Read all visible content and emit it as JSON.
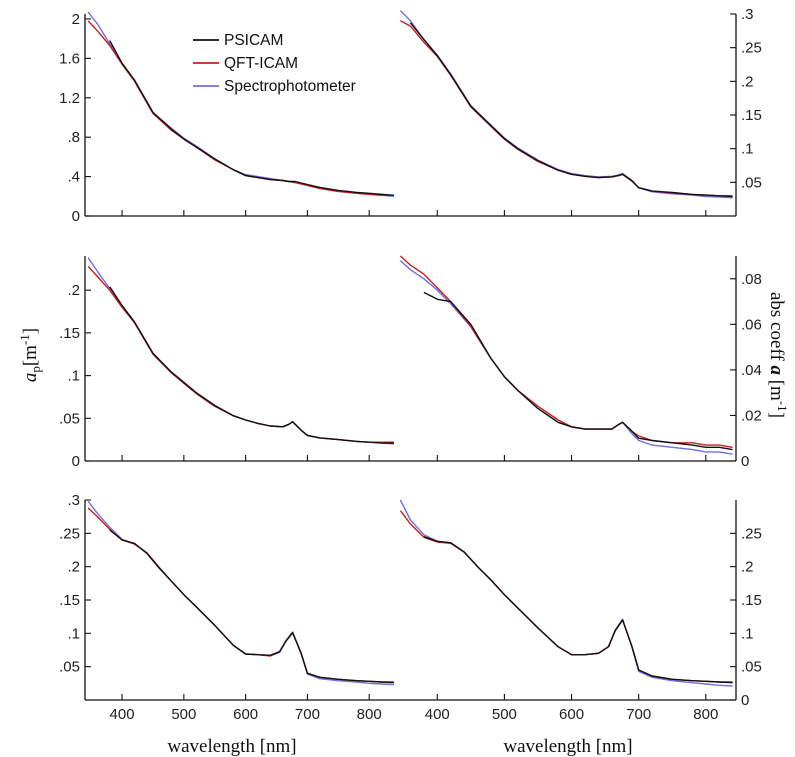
{
  "chart_data": {
    "type": "line",
    "grid": false,
    "legend": {
      "location": "top-left panel, upper area",
      "entries": [
        {
          "name": "PSICAM",
          "color": "#111111"
        },
        {
          "name": "QFT-ICAM",
          "color": "#c81e1e"
        },
        {
          "name": "Spectrophotometer",
          "color": "#6f6fe8"
        }
      ]
    },
    "xlabel": "wavelength [nm]",
    "ylabel_left_symbol": "a",
    "ylabel_left_subscript": "p",
    "ylabel_left_unit": "[m",
    "ylabel_left_exp": "-1",
    "ylabel_left_close": "]",
    "ylabel_right_text": "abs coeff ",
    "ylabel_right_symbol": "a",
    "ylabel_right_unit": " [m",
    "ylabel_right_exp": "-1",
    "ylabel_right_close": "]",
    "xlim": [
      340,
      845
    ],
    "xticks": [
      400,
      500,
      600,
      700,
      800
    ],
    "xticklabels": [
      "400",
      "500",
      "600",
      "700",
      "800"
    ],
    "panels": [
      {
        "id": "top-left",
        "row": 0,
        "col": 0,
        "yaxis": "left",
        "ylim": [
          0,
          2.05
        ],
        "yticks": [
          0,
          0.4,
          0.8,
          1.2,
          1.6,
          2.0
        ],
        "yticklabels": [
          "0",
          ".4",
          ".8",
          "1.2",
          "1.6",
          "2"
        ],
        "x": [
          345,
          360,
          380,
          400,
          420,
          450,
          480,
          500,
          520,
          550,
          580,
          600,
          620,
          640,
          660,
          670,
          680,
          700,
          720,
          750,
          780,
          800,
          820,
          840
        ],
        "series": [
          {
            "name": "PSICAM",
            "start": 370,
            "values": [
              2.0,
              1.93,
              1.78,
              1.55,
              1.38,
              1.05,
              0.88,
              0.78,
              0.7,
              0.58,
              0.47,
              0.41,
              0.39,
              0.37,
              0.36,
              0.35,
              0.35,
              0.32,
              0.29,
              0.26,
              0.24,
              0.23,
              0.22,
              0.21
            ]
          },
          {
            "name": "QFT-ICAM",
            "values": [
              1.98,
              1.88,
              1.73,
              1.54,
              1.37,
              1.04,
              0.87,
              0.78,
              0.7,
              0.57,
              0.47,
              0.41,
              0.39,
              0.37,
              0.36,
              0.35,
              0.34,
              0.31,
              0.28,
              0.25,
              0.23,
              0.22,
              0.21,
              0.21
            ]
          },
          {
            "name": "Spectrophotometer",
            "values": [
              2.07,
              1.95,
              1.75,
              1.55,
              1.38,
              1.05,
              0.89,
              0.79,
              0.71,
              0.58,
              0.47,
              0.42,
              0.4,
              0.38,
              0.36,
              0.35,
              0.34,
              0.31,
              0.28,
              0.25,
              0.23,
              0.22,
              0.21,
              0.2
            ]
          }
        ]
      },
      {
        "id": "top-right",
        "row": 0,
        "col": 1,
        "yaxis": "right",
        "ylim": [
          0,
          0.3
        ],
        "yticks": [
          0.05,
          0.1,
          0.15,
          0.2,
          0.25,
          0.3
        ],
        "yticklabels": [
          ".05",
          ".1",
          ".15",
          ".2",
          ".25",
          ".3"
        ],
        "x": [
          345,
          360,
          380,
          400,
          420,
          450,
          480,
          500,
          520,
          550,
          580,
          600,
          620,
          640,
          660,
          670,
          676,
          690,
          700,
          720,
          750,
          780,
          800,
          820,
          840
        ],
        "series": [
          {
            "name": "PSICAM",
            "start": 360,
            "values": [
              0.3,
              0.287,
              0.262,
              0.238,
              0.21,
              0.163,
              0.134,
              0.115,
              0.1,
              0.082,
              0.068,
              0.062,
              0.059,
              0.057,
              0.058,
              0.06,
              0.062,
              0.052,
              0.042,
              0.037,
              0.035,
              0.032,
              0.031,
              0.03,
              0.029
            ]
          },
          {
            "name": "QFT-ICAM",
            "values": [
              0.29,
              0.282,
              0.258,
              0.237,
              0.209,
              0.162,
              0.133,
              0.114,
              0.099,
              0.081,
              0.068,
              0.062,
              0.059,
              0.057,
              0.058,
              0.06,
              0.062,
              0.052,
              0.042,
              0.037,
              0.034,
              0.032,
              0.031,
              0.03,
              0.03
            ]
          },
          {
            "name": "Spectrophotometer",
            "values": [
              0.305,
              0.29,
              0.262,
              0.239,
              0.211,
              0.164,
              0.135,
              0.116,
              0.101,
              0.083,
              0.069,
              0.063,
              0.06,
              0.058,
              0.059,
              0.061,
              0.063,
              0.053,
              0.042,
              0.036,
              0.033,
              0.031,
              0.029,
              0.028,
              0.027
            ]
          }
        ]
      },
      {
        "id": "middle-left",
        "row": 1,
        "col": 0,
        "yaxis": "left",
        "ylim": [
          0,
          0.24
        ],
        "yticks": [
          0,
          0.05,
          0.1,
          0.15,
          0.2
        ],
        "yticklabels": [
          "0",
          ".05",
          ".1",
          ".15",
          ".2"
        ],
        "x": [
          345,
          360,
          380,
          400,
          420,
          450,
          480,
          500,
          520,
          550,
          580,
          600,
          620,
          640,
          660,
          670,
          676,
          690,
          700,
          720,
          750,
          780,
          800,
          820,
          840
        ],
        "series": [
          {
            "name": "PSICAM",
            "start": 370,
            "values": [
              0.225,
              0.214,
              0.204,
              0.182,
              0.163,
              0.126,
              0.104,
              0.092,
              0.08,
              0.065,
              0.053,
              0.048,
              0.044,
              0.041,
              0.04,
              0.043,
              0.046,
              0.036,
              0.03,
              0.027,
              0.025,
              0.023,
              0.022,
              0.021,
              0.021
            ]
          },
          {
            "name": "QFT-ICAM",
            "values": [
              0.228,
              0.216,
              0.2,
              0.18,
              0.162,
              0.125,
              0.103,
              0.091,
              0.079,
              0.064,
              0.053,
              0.048,
              0.044,
              0.041,
              0.04,
              0.043,
              0.046,
              0.036,
              0.03,
              0.027,
              0.025,
              0.023,
              0.022,
              0.022,
              0.022
            ]
          },
          {
            "name": "Spectrophotometer",
            "values": [
              0.238,
              0.222,
              0.202,
              0.181,
              0.163,
              0.126,
              0.104,
              0.092,
              0.08,
              0.065,
              0.053,
              0.048,
              0.044,
              0.041,
              0.04,
              0.043,
              0.046,
              0.036,
              0.03,
              0.027,
              0.025,
              0.023,
              0.022,
              0.021,
              0.02
            ]
          }
        ]
      },
      {
        "id": "middle-right",
        "row": 1,
        "col": 1,
        "yaxis": "right",
        "ylim": [
          0,
          0.09
        ],
        "yticks": [
          0,
          0.02,
          0.04,
          0.06,
          0.08
        ],
        "yticklabels": [
          "0",
          ".02",
          ".04",
          ".06",
          ".08"
        ],
        "x": [
          345,
          360,
          380,
          400,
          420,
          450,
          480,
          500,
          520,
          550,
          580,
          600,
          620,
          640,
          660,
          670,
          676,
          690,
          700,
          720,
          750,
          780,
          800,
          820,
          840
        ],
        "series": [
          {
            "name": "PSICAM",
            "start": 372,
            "values": [
              0.09,
              0.085,
              0.074,
              0.071,
              0.07,
              0.06,
              0.045,
              0.037,
              0.031,
              0.023,
              0.017,
              0.015,
              0.014,
              0.014,
              0.014,
              0.016,
              0.017,
              0.013,
              0.01,
              0.009,
              0.008,
              0.007,
              0.006,
              0.006,
              0.005
            ]
          },
          {
            "name": "QFT-ICAM",
            "values": [
              0.09,
              0.086,
              0.082,
              0.076,
              0.07,
              0.059,
              0.045,
              0.037,
              0.031,
              0.024,
              0.018,
              0.015,
              0.014,
              0.014,
              0.014,
              0.016,
              0.017,
              0.013,
              0.011,
              0.009,
              0.008,
              0.008,
              0.007,
              0.007,
              0.006
            ]
          },
          {
            "name": "Spectrophotometer",
            "values": [
              0.088,
              0.084,
              0.08,
              0.075,
              0.069,
              0.059,
              0.045,
              0.037,
              0.031,
              0.023,
              0.017,
              0.015,
              0.014,
              0.014,
              0.014,
              0.016,
              0.017,
              0.012,
              0.009,
              0.007,
              0.006,
              0.005,
              0.004,
              0.004,
              0.003
            ]
          }
        ]
      },
      {
        "id": "bottom-left",
        "row": 2,
        "col": 0,
        "yaxis": "left",
        "ylim": [
          0,
          0.3
        ],
        "yticks": [
          0.05,
          0.1,
          0.15,
          0.2,
          0.25,
          0.3
        ],
        "yticklabels": [
          ".05",
          ".1",
          ".15",
          ".2",
          ".25",
          ".3"
        ],
        "x": [
          345,
          360,
          380,
          400,
          420,
          440,
          460,
          480,
          500,
          520,
          550,
          580,
          600,
          620,
          640,
          655,
          665,
          676,
          690,
          700,
          720,
          750,
          780,
          800,
          820,
          840
        ],
        "series": [
          {
            "name": "PSICAM",
            "start": 370,
            "values": [
              0.29,
              0.272,
              0.255,
              0.24,
              0.235,
              0.22,
              0.198,
              0.178,
              0.158,
              0.14,
              0.112,
              0.082,
              0.069,
              0.068,
              0.067,
              0.072,
              0.088,
              0.101,
              0.07,
              0.04,
              0.034,
              0.031,
              0.029,
              0.028,
              0.027,
              0.026
            ]
          },
          {
            "name": "QFT-ICAM",
            "values": [
              0.288,
              0.275,
              0.256,
              0.24,
              0.234,
              0.221,
              0.199,
              0.178,
              0.158,
              0.14,
              0.112,
              0.082,
              0.069,
              0.068,
              0.066,
              0.072,
              0.088,
              0.101,
              0.07,
              0.04,
              0.034,
              0.031,
              0.029,
              0.028,
              0.027,
              0.027
            ]
          },
          {
            "name": "Spectrophotometer",
            "values": [
              0.298,
              0.28,
              0.259,
              0.241,
              0.234,
              0.221,
              0.199,
              0.178,
              0.158,
              0.14,
              0.112,
              0.082,
              0.069,
              0.068,
              0.067,
              0.073,
              0.089,
              0.102,
              0.069,
              0.039,
              0.032,
              0.029,
              0.027,
              0.025,
              0.024,
              0.023
            ]
          }
        ]
      },
      {
        "id": "bottom-right",
        "row": 2,
        "col": 1,
        "yaxis": "right",
        "ylim": [
          0,
          0.3
        ],
        "yticks": [
          0,
          0.05,
          0.1,
          0.15,
          0.2,
          0.25
        ],
        "yticklabels": [
          "0",
          ".05",
          ".1",
          ".15",
          ".2",
          ".25"
        ],
        "x": [
          345,
          360,
          380,
          400,
          420,
          440,
          460,
          480,
          500,
          520,
          550,
          580,
          600,
          620,
          640,
          655,
          665,
          676,
          690,
          700,
          720,
          750,
          780,
          800,
          820,
          840
        ],
        "series": [
          {
            "name": "PSICAM",
            "start": 372,
            "values": [
              0.285,
              0.262,
              0.245,
              0.238,
              0.236,
              0.222,
              0.2,
              0.18,
              0.158,
              0.138,
              0.108,
              0.08,
              0.068,
              0.068,
              0.07,
              0.08,
              0.104,
              0.12,
              0.08,
              0.045,
              0.036,
              0.031,
              0.029,
              0.028,
              0.027,
              0.026
            ]
          },
          {
            "name": "QFT-ICAM",
            "values": [
              0.284,
              0.264,
              0.244,
              0.237,
              0.235,
              0.222,
              0.2,
              0.18,
              0.158,
              0.138,
              0.108,
              0.08,
              0.068,
              0.068,
              0.07,
              0.08,
              0.104,
              0.12,
              0.08,
              0.045,
              0.036,
              0.031,
              0.029,
              0.028,
              0.027,
              0.027
            ]
          },
          {
            "name": "Spectrophotometer",
            "values": [
              0.3,
              0.27,
              0.248,
              0.238,
              0.235,
              0.222,
              0.2,
              0.18,
              0.158,
              0.138,
              0.108,
              0.08,
              0.068,
              0.068,
              0.07,
              0.08,
              0.105,
              0.121,
              0.079,
              0.043,
              0.034,
              0.029,
              0.026,
              0.024,
              0.022,
              0.021
            ]
          }
        ]
      }
    ]
  }
}
